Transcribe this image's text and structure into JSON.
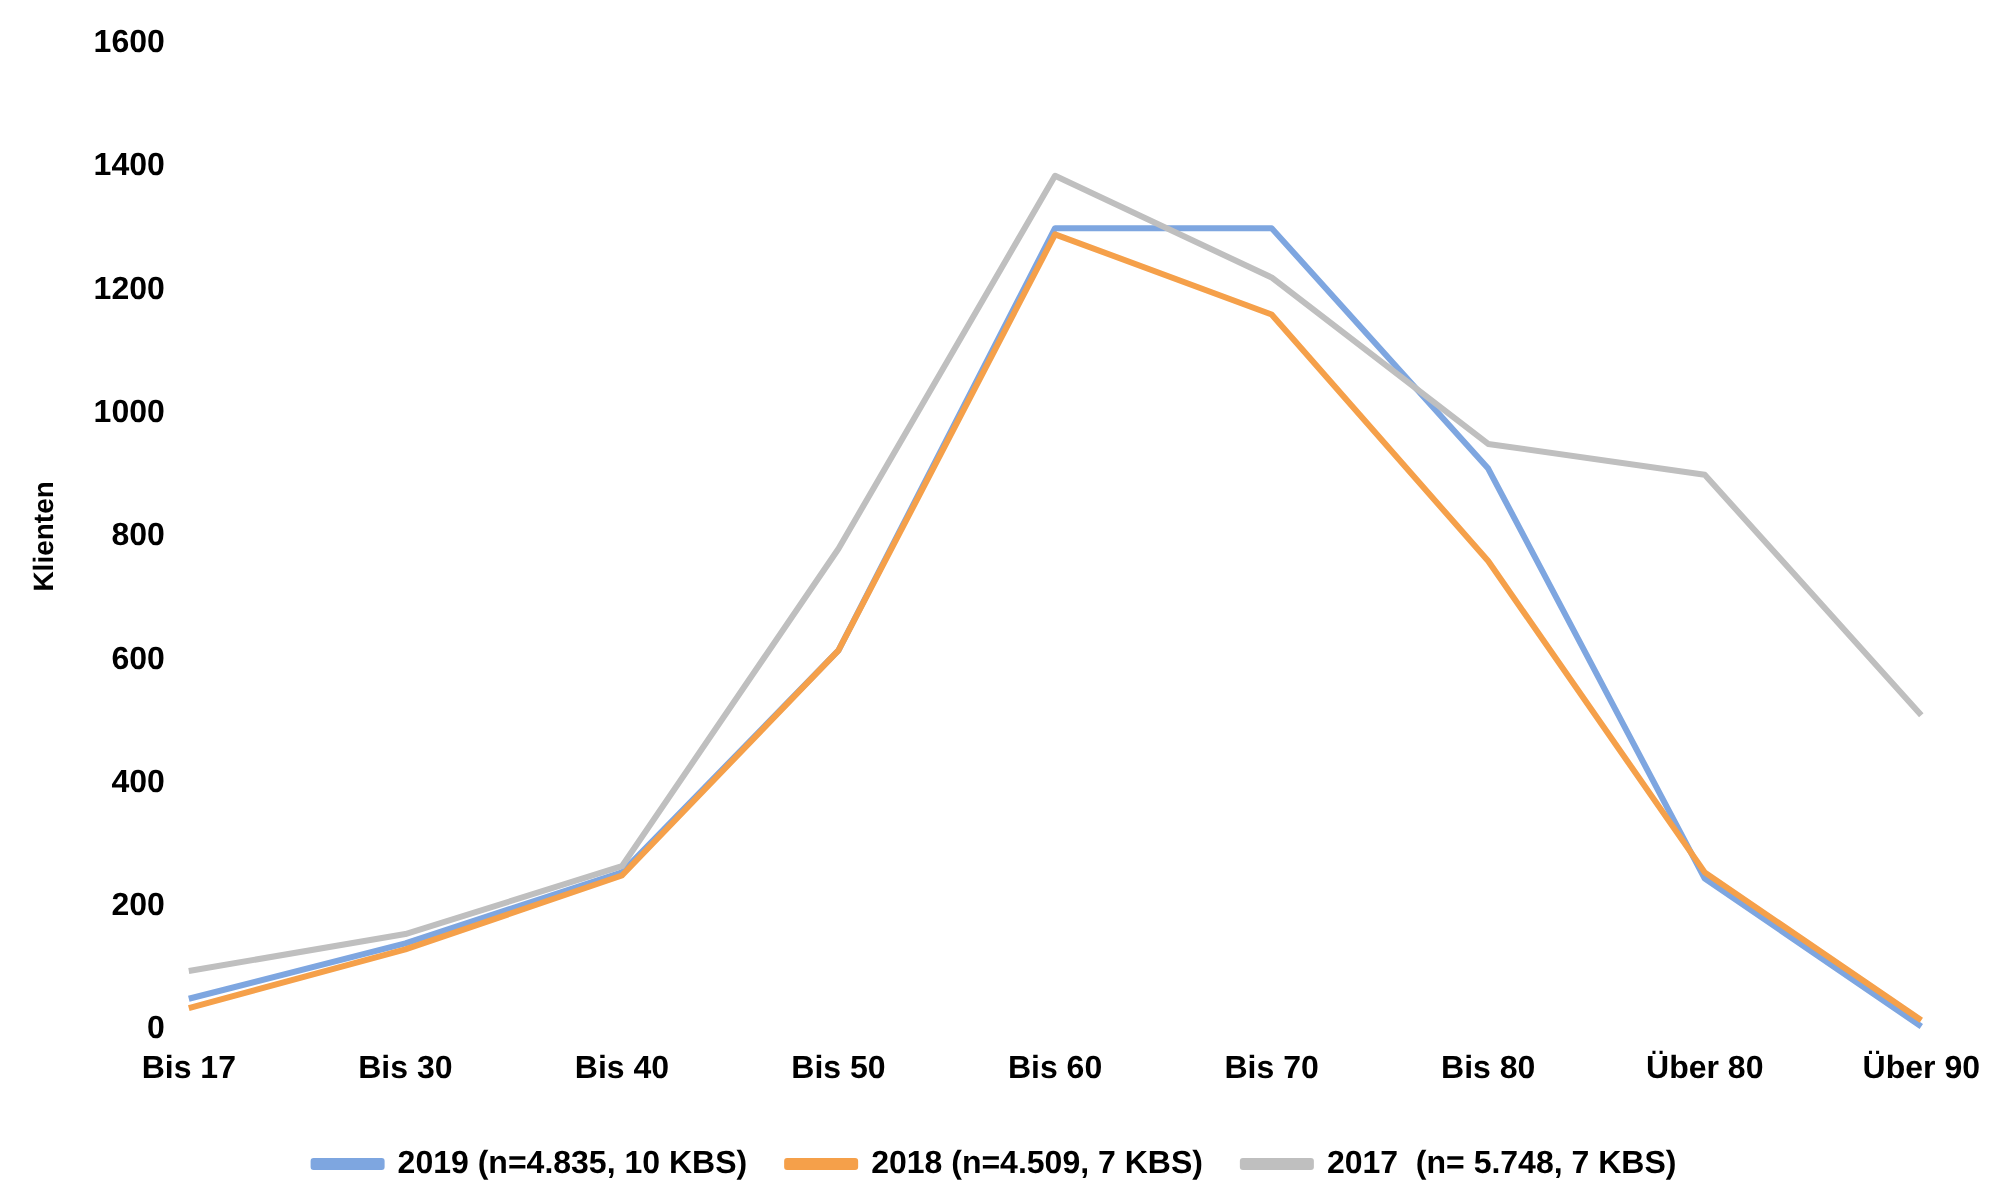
{
  "chart_data": {
    "type": "line",
    "ylabel": "Klienten",
    "categories": [
      "Bis 17",
      "Bis 30",
      "Bis 40",
      "Bis 50",
      "Bis 60",
      "Bis 70",
      "Bis 80",
      "Über 80",
      "Über 90"
    ],
    "series": [
      {
        "name": "2019 (n=4.835, 10 KBS)",
        "color": "#7ea6e0",
        "values": [
          50,
          140,
          255,
          615,
          1300,
          1300,
          910,
          245,
          5
        ]
      },
      {
        "name": "2018 (n=4.509, 7 KBS)",
        "color": "#f5a04a",
        "values": [
          35,
          130,
          250,
          615,
          1290,
          1160,
          760,
          255,
          15
        ]
      },
      {
        "name": "2017  (n= 5.748, 7 KBS)",
        "color": "#bfbfbf",
        "values": [
          95,
          155,
          265,
          780,
          1385,
          1220,
          950,
          900,
          510
        ]
      }
    ],
    "ylim": [
      0,
      1600
    ],
    "yticks": [
      0,
      200,
      400,
      600,
      800,
      1000,
      1200,
      1400,
      1600
    ],
    "grid": false,
    "legend": "bottom",
    "marker": "none",
    "line_style": "solid"
  }
}
